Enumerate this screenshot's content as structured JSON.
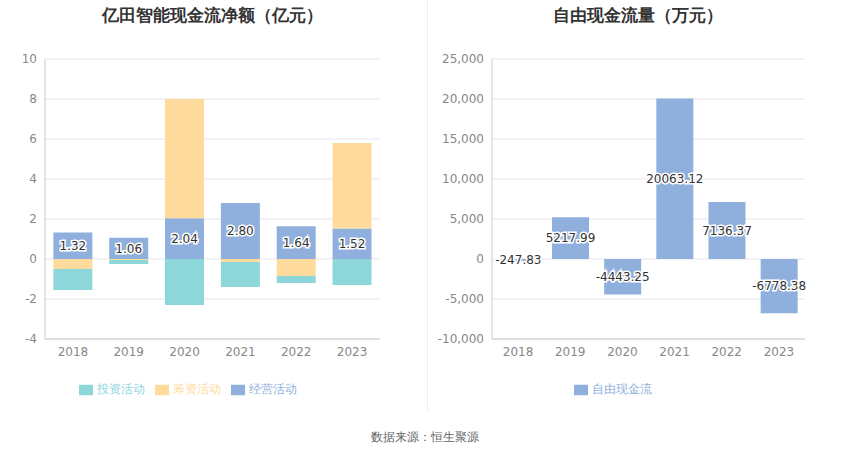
{
  "chart_data": [
    {
      "type": "bar",
      "title": "亿田智能现金流净额（亿元）",
      "categories": [
        "2018",
        "2019",
        "2020",
        "2021",
        "2022",
        "2023"
      ],
      "stacked": true,
      "grid": true,
      "legend": "bottom",
      "ylim": [
        -4,
        10
      ],
      "yticks": [
        -4,
        -2,
        0,
        2,
        4,
        6,
        8,
        10
      ],
      "series": [
        {
          "name": "经营活动",
          "color": "#8fb0dc",
          "values": [
            1.32,
            1.06,
            2.04,
            2.8,
            1.64,
            1.52
          ],
          "value_labels": [
            "1.32",
            "1.06",
            "2.04",
            "2.80",
            "1.64",
            "1.52"
          ],
          "data_labels": true
        },
        {
          "name": "筹资活动",
          "color": "#fedb9c",
          "values": [
            -0.5,
            -0.05,
            5.96,
            -0.15,
            -0.85,
            4.28
          ]
        },
        {
          "name": "投资活动",
          "color": "#8dd7db",
          "values": [
            -1.05,
            -0.2,
            -2.3,
            -1.25,
            -0.35,
            -1.3
          ]
        }
      ]
    },
    {
      "type": "bar",
      "title": "自由现金流量（万元）",
      "categories": [
        "2018",
        "2019",
        "2020",
        "2021",
        "2022",
        "2023"
      ],
      "grid": true,
      "legend": "bottom",
      "ylim": [
        -10000,
        25000
      ],
      "yticks": [
        {
          "value": -10000,
          "label": "-10,000"
        },
        {
          "value": -5000,
          "label": "-5,000"
        },
        0,
        {
          "value": 5000,
          "label": "5,000"
        },
        {
          "value": 10000,
          "label": "10,000"
        },
        {
          "value": 15000,
          "label": "15,000"
        },
        {
          "value": 20000,
          "label": "20,000"
        },
        {
          "value": 25000,
          "label": "25,000"
        }
      ],
      "series": [
        {
          "name": "自由现金流",
          "color": "#8fb0dc",
          "values": [
            -247.83,
            5217.99,
            -4443.25,
            20063.12,
            7136.37,
            -6778.38
          ],
          "data_labels": true
        }
      ]
    }
  ],
  "source": "数据来源：恒生聚源"
}
